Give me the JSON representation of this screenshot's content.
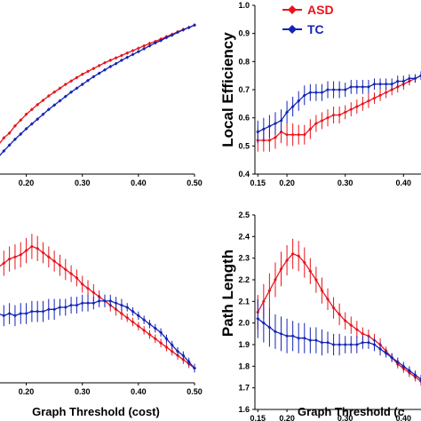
{
  "colors": {
    "asd": "#e8141c",
    "tc": "#1424b4",
    "axis": "#000000"
  },
  "legend": {
    "asd": "ASD",
    "tc": "TC"
  },
  "chart_data": [
    {
      "id": "top-left",
      "type": "line",
      "title": "",
      "xlabel": "",
      "ylabel": "",
      "xlim": [
        0.15,
        0.5
      ],
      "ylim": [
        0.62,
        0.97
      ],
      "xticks": [
        "0.20",
        "0.30",
        "0.40",
        "0.50"
      ],
      "xtick_values": [
        0.2,
        0.3,
        0.4,
        0.5
      ],
      "yticks": [],
      "x": [
        0.15,
        0.16,
        0.17,
        0.18,
        0.19,
        0.2,
        0.21,
        0.22,
        0.23,
        0.24,
        0.25,
        0.26,
        0.27,
        0.28,
        0.29,
        0.3,
        0.31,
        0.32,
        0.33,
        0.34,
        0.35,
        0.36,
        0.37,
        0.38,
        0.39,
        0.4,
        0.41,
        0.42,
        0.43,
        0.44,
        0.45,
        0.46,
        0.47,
        0.48,
        0.49,
        0.5
      ],
      "series": [
        {
          "name": "ASD",
          "color_key": "asd",
          "values": [
            0.68,
            0.695,
            0.705,
            0.72,
            0.732,
            0.744,
            0.754,
            0.764,
            0.773,
            0.782,
            0.79,
            0.798,
            0.806,
            0.813,
            0.82,
            0.827,
            0.833,
            0.839,
            0.845,
            0.851,
            0.856,
            0.861,
            0.866,
            0.871,
            0.876,
            0.881,
            0.886,
            0.891,
            0.895,
            0.9,
            0.905,
            0.91,
            0.915,
            0.92,
            0.924,
            0.929
          ],
          "err": [
            0.003,
            0.003,
            0.003,
            0.003,
            0.003,
            0.003,
            0.003,
            0.003,
            0.003,
            0.003,
            0.003,
            0.003,
            0.003,
            0.003,
            0.003,
            0.003,
            0.003,
            0.003,
            0.003,
            0.003,
            0.003,
            0.003,
            0.003,
            0.003,
            0.003,
            0.003,
            0.003,
            0.003,
            0.003,
            0.003,
            0.003,
            0.003,
            0.003,
            0.003,
            0.003,
            0.003
          ]
        },
        {
          "name": "TC",
          "color_key": "tc",
          "values": [
            0.655,
            0.668,
            0.68,
            0.692,
            0.703,
            0.714,
            0.724,
            0.734,
            0.744,
            0.754,
            0.763,
            0.772,
            0.781,
            0.79,
            0.798,
            0.806,
            0.814,
            0.822,
            0.829,
            0.836,
            0.843,
            0.849,
            0.856,
            0.862,
            0.868,
            0.874,
            0.88,
            0.886,
            0.892,
            0.897,
            0.903,
            0.908,
            0.914,
            0.919,
            0.924,
            0.929
          ],
          "err": [
            0.003,
            0.003,
            0.003,
            0.003,
            0.003,
            0.003,
            0.003,
            0.003,
            0.003,
            0.003,
            0.003,
            0.003,
            0.003,
            0.003,
            0.003,
            0.003,
            0.003,
            0.003,
            0.003,
            0.003,
            0.003,
            0.003,
            0.003,
            0.003,
            0.003,
            0.003,
            0.003,
            0.003,
            0.003,
            0.003,
            0.003,
            0.003,
            0.003,
            0.003,
            0.003,
            0.003
          ]
        }
      ]
    },
    {
      "id": "top-right",
      "type": "line",
      "title": "",
      "xlabel": "",
      "ylabel": "Local Efficiency",
      "xlim": [
        0.145,
        0.43
      ],
      "ylim": [
        0.4,
        1.0
      ],
      "xticks": [
        "0.15",
        "0.20",
        "0.30",
        "0.40"
      ],
      "xtick_values": [
        0.15,
        0.2,
        0.3,
        0.4
      ],
      "yticks": [
        "0.4",
        "0.5",
        "0.6",
        "0.7",
        "0.8",
        "0.9",
        "1.0"
      ],
      "ytick_values": [
        0.4,
        0.5,
        0.6,
        0.7,
        0.8,
        0.9,
        1.0
      ],
      "x": [
        0.15,
        0.16,
        0.17,
        0.18,
        0.19,
        0.2,
        0.21,
        0.22,
        0.23,
        0.24,
        0.25,
        0.26,
        0.27,
        0.28,
        0.29,
        0.3,
        0.31,
        0.32,
        0.33,
        0.34,
        0.35,
        0.36,
        0.37,
        0.38,
        0.39,
        0.4,
        0.41,
        0.42,
        0.43
      ],
      "series": [
        {
          "name": "ASD",
          "color_key": "asd",
          "values": [
            0.52,
            0.52,
            0.52,
            0.53,
            0.55,
            0.54,
            0.54,
            0.54,
            0.54,
            0.56,
            0.58,
            0.59,
            0.6,
            0.61,
            0.61,
            0.62,
            0.63,
            0.64,
            0.65,
            0.66,
            0.67,
            0.68,
            0.69,
            0.7,
            0.71,
            0.72,
            0.73,
            0.74,
            0.75
          ],
          "err": [
            0.04,
            0.04,
            0.04,
            0.04,
            0.04,
            0.04,
            0.04,
            0.035,
            0.035,
            0.035,
            0.03,
            0.03,
            0.03,
            0.03,
            0.03,
            0.025,
            0.025,
            0.025,
            0.025,
            0.025,
            0.02,
            0.02,
            0.02,
            0.02,
            0.02,
            0.02,
            0.015,
            0.015,
            0.015
          ]
        },
        {
          "name": "TC",
          "color_key": "tc",
          "values": [
            0.55,
            0.56,
            0.57,
            0.58,
            0.59,
            0.62,
            0.64,
            0.66,
            0.68,
            0.69,
            0.69,
            0.69,
            0.7,
            0.7,
            0.7,
            0.7,
            0.71,
            0.71,
            0.71,
            0.71,
            0.72,
            0.72,
            0.72,
            0.72,
            0.73,
            0.73,
            0.74,
            0.74,
            0.75
          ],
          "err": [
            0.04,
            0.04,
            0.04,
            0.04,
            0.04,
            0.04,
            0.035,
            0.035,
            0.035,
            0.03,
            0.03,
            0.03,
            0.03,
            0.03,
            0.03,
            0.025,
            0.025,
            0.025,
            0.025,
            0.025,
            0.02,
            0.02,
            0.02,
            0.02,
            0.02,
            0.02,
            0.015,
            0.015,
            0.015
          ]
        }
      ]
    },
    {
      "id": "bottom-left",
      "type": "line",
      "title": "",
      "xlabel": "Graph Threshold (cost)",
      "ylabel": "",
      "xlim": [
        0.15,
        0.5
      ],
      "ylim": [
        1.65,
        2.45
      ],
      "xticks": [
        "0.20",
        "0.30",
        "0.40",
        "0.50"
      ],
      "xtick_values": [
        0.2,
        0.3,
        0.4,
        0.5
      ],
      "yticks": [],
      "x": [
        0.15,
        0.16,
        0.17,
        0.18,
        0.19,
        0.2,
        0.21,
        0.22,
        0.23,
        0.24,
        0.25,
        0.26,
        0.27,
        0.28,
        0.29,
        0.3,
        0.31,
        0.32,
        0.33,
        0.34,
        0.35,
        0.36,
        0.37,
        0.38,
        0.39,
        0.4,
        0.41,
        0.42,
        0.43,
        0.44,
        0.45,
        0.46,
        0.47,
        0.48,
        0.49,
        0.5
      ],
      "series": [
        {
          "name": "ASD",
          "color_key": "asd",
          "values": [
            2.2,
            2.22,
            2.24,
            2.25,
            2.26,
            2.28,
            2.3,
            2.29,
            2.27,
            2.25,
            2.23,
            2.21,
            2.19,
            2.17,
            2.15,
            2.12,
            2.1,
            2.08,
            2.06,
            2.04,
            2.02,
            2.0,
            1.98,
            1.96,
            1.94,
            1.92,
            1.9,
            1.88,
            1.86,
            1.84,
            1.82,
            1.8,
            1.78,
            1.76,
            1.74,
            1.72
          ],
          "err": [
            0.06,
            0.06,
            0.06,
            0.06,
            0.06,
            0.06,
            0.06,
            0.06,
            0.05,
            0.05,
            0.05,
            0.05,
            0.05,
            0.04,
            0.04,
            0.04,
            0.04,
            0.04,
            0.03,
            0.03,
            0.03,
            0.03,
            0.03,
            0.02,
            0.02,
            0.02,
            0.02,
            0.02,
            0.02,
            0.02,
            0.02,
            0.02,
            0.02,
            0.02,
            0.02,
            0.02
          ]
        },
        {
          "name": "TC",
          "color_key": "tc",
          "values": [
            1.98,
            1.97,
            1.98,
            1.97,
            1.98,
            1.98,
            1.99,
            1.99,
            1.99,
            2.0,
            2.0,
            2.01,
            2.01,
            2.02,
            2.02,
            2.03,
            2.03,
            2.03,
            2.04,
            2.04,
            2.04,
            2.03,
            2.02,
            2.01,
            1.99,
            1.97,
            1.95,
            1.93,
            1.91,
            1.89,
            1.86,
            1.83,
            1.8,
            1.78,
            1.75,
            1.72
          ],
          "err": [
            0.05,
            0.05,
            0.05,
            0.05,
            0.05,
            0.05,
            0.05,
            0.05,
            0.05,
            0.05,
            0.05,
            0.04,
            0.04,
            0.04,
            0.04,
            0.04,
            0.04,
            0.03,
            0.03,
            0.03,
            0.03,
            0.03,
            0.03,
            0.02,
            0.02,
            0.02,
            0.02,
            0.02,
            0.02,
            0.02,
            0.02,
            0.02,
            0.02,
            0.02,
            0.02,
            0.02
          ]
        }
      ]
    },
    {
      "id": "bottom-right",
      "type": "line",
      "title": "",
      "xlabel": "Graph Threshold (c",
      "ylabel": "Path Length",
      "xlim": [
        0.145,
        0.43
      ],
      "ylim": [
        1.6,
        2.5
      ],
      "xticks": [
        "0.15",
        "0.20",
        "0.30",
        "0.40"
      ],
      "xtick_values": [
        0.15,
        0.2,
        0.3,
        0.4
      ],
      "yticks": [
        "1.6",
        "1.7",
        "1.8",
        "1.9",
        "2.0",
        "2.1",
        "2.2",
        "2.3",
        "2.4",
        "2.5"
      ],
      "ytick_values": [
        1.6,
        1.7,
        1.8,
        1.9,
        2.0,
        2.1,
        2.2,
        2.3,
        2.4,
        2.5
      ],
      "x": [
        0.15,
        0.16,
        0.17,
        0.18,
        0.19,
        0.2,
        0.21,
        0.22,
        0.23,
        0.24,
        0.25,
        0.26,
        0.27,
        0.28,
        0.29,
        0.3,
        0.31,
        0.32,
        0.33,
        0.34,
        0.35,
        0.36,
        0.37,
        0.38,
        0.39,
        0.4,
        0.41,
        0.42,
        0.43
      ],
      "series": [
        {
          "name": "ASD",
          "color_key": "asd",
          "values": [
            2.05,
            2.1,
            2.15,
            2.2,
            2.25,
            2.29,
            2.32,
            2.31,
            2.28,
            2.24,
            2.2,
            2.15,
            2.11,
            2.07,
            2.04,
            2.01,
            1.99,
            1.97,
            1.95,
            1.94,
            1.92,
            1.9,
            1.87,
            1.84,
            1.81,
            1.79,
            1.77,
            1.75,
            1.73
          ],
          "err": [
            0.08,
            0.08,
            0.08,
            0.08,
            0.08,
            0.07,
            0.07,
            0.07,
            0.07,
            0.06,
            0.06,
            0.06,
            0.05,
            0.05,
            0.05,
            0.04,
            0.04,
            0.04,
            0.03,
            0.03,
            0.03,
            0.03,
            0.02,
            0.02,
            0.02,
            0.02,
            0.02,
            0.02,
            0.02
          ]
        },
        {
          "name": "TC",
          "color_key": "tc",
          "values": [
            2.02,
            2.0,
            1.98,
            1.96,
            1.95,
            1.94,
            1.94,
            1.93,
            1.93,
            1.92,
            1.92,
            1.91,
            1.91,
            1.9,
            1.9,
            1.9,
            1.9,
            1.9,
            1.91,
            1.91,
            1.9,
            1.88,
            1.86,
            1.84,
            1.82,
            1.8,
            1.78,
            1.76,
            1.74
          ],
          "err": [
            0.09,
            0.09,
            0.09,
            0.08,
            0.08,
            0.08,
            0.07,
            0.07,
            0.07,
            0.06,
            0.06,
            0.06,
            0.05,
            0.05,
            0.05,
            0.04,
            0.04,
            0.04,
            0.03,
            0.03,
            0.03,
            0.03,
            0.02,
            0.02,
            0.02,
            0.02,
            0.02,
            0.02,
            0.02
          ]
        }
      ]
    }
  ]
}
